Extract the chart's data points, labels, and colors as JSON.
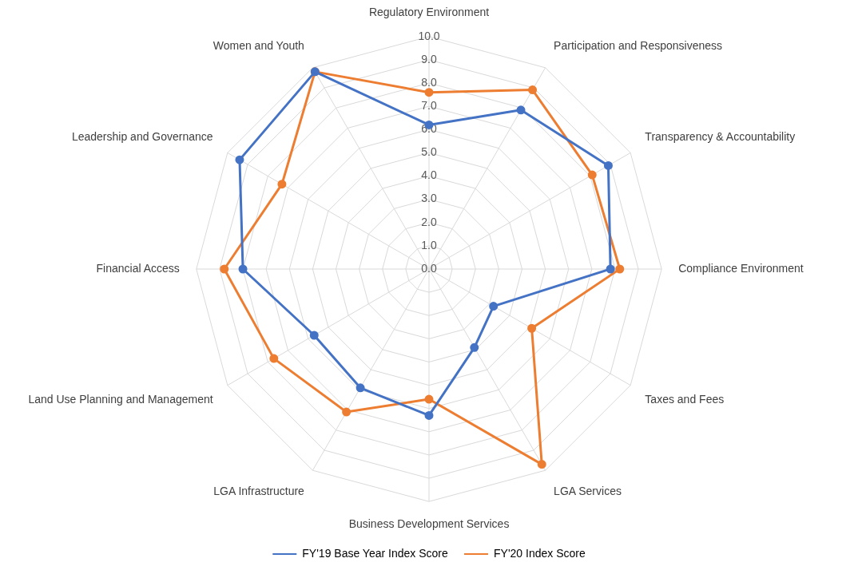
{
  "chart_data": {
    "type": "radar",
    "categories": [
      "Regulatory Environment",
      "Participation and Responsiveness",
      "Transparency & Accountability",
      "Compliance Environment",
      "Taxes and Fees",
      "LGA Services",
      "Business Development Services",
      "LGA Infrastructure",
      "Land Use Planning and Management",
      "Financial Access",
      "Leadership and Governance",
      "Women and Youth"
    ],
    "series": [
      {
        "name": "FY'19 Base Year Index Score",
        "color": "#4472c4",
        "values": [
          6.2,
          7.9,
          8.9,
          7.8,
          3.2,
          3.9,
          6.3,
          5.9,
          5.7,
          8.0,
          9.4,
          9.8
        ]
      },
      {
        "name": "FY'20 Index Score",
        "color": "#ed7d31",
        "values": [
          7.6,
          8.9,
          8.1,
          8.2,
          5.1,
          9.7,
          5.6,
          7.1,
          7.7,
          8.8,
          7.3,
          9.8
        ]
      }
    ],
    "ylim": [
      0,
      10
    ],
    "yticks": [
      {
        "value": 0,
        "label": "0.0"
      },
      {
        "value": 1,
        "label": "1.0"
      },
      {
        "value": 2,
        "label": "2.0"
      },
      {
        "value": 3,
        "label": "3.0"
      },
      {
        "value": 4,
        "label": "4.0"
      },
      {
        "value": 5,
        "label": "5.0"
      },
      {
        "value": 6,
        "label": "6.0"
      },
      {
        "value": 7,
        "label": "7.0"
      },
      {
        "value": 8,
        "label": "8.0"
      },
      {
        "value": 9,
        "label": "9.0"
      },
      {
        "value": 10,
        "label": "10.0"
      }
    ],
    "grid": true,
    "legend": "bottom",
    "marker": "circle",
    "line_style": "solid"
  }
}
